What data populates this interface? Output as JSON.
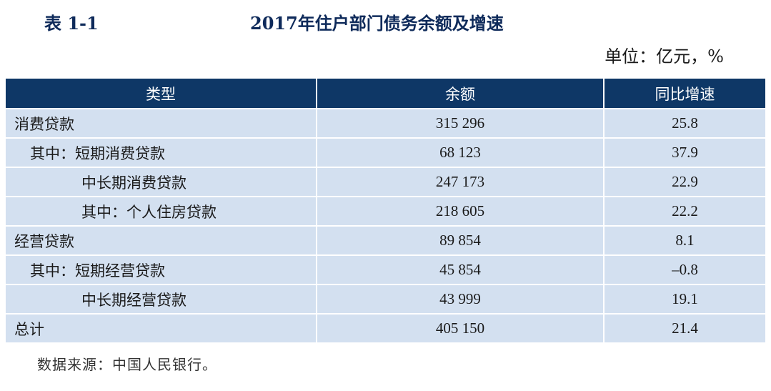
{
  "header": {
    "table_number": "表 1-1",
    "title": "2017年住户部门债务余额及增速",
    "unit": "单位：亿元，%"
  },
  "table": {
    "columns": [
      "类型",
      "余额",
      "同比增速"
    ],
    "rows": [
      {
        "type": "消费贷款",
        "balance": "315 296",
        "growth": "25.8",
        "indent": 0
      },
      {
        "type": "其中：短期消费贷款",
        "balance": "68 123",
        "growth": "37.9",
        "indent": 1
      },
      {
        "type": "中长期消费贷款",
        "balance": "247 173",
        "growth": "22.9",
        "indent": 2
      },
      {
        "type": "其中：个人住房贷款",
        "balance": "218 605",
        "growth": "22.2",
        "indent": 2
      },
      {
        "type": "经营贷款",
        "balance": "89 854",
        "growth": "8.1",
        "indent": 0
      },
      {
        "type": "其中：短期经营贷款",
        "balance": "45 854",
        "growth": "–0.8",
        "indent": 1
      },
      {
        "type": "中长期经营贷款",
        "balance": "43 999",
        "growth": "19.1",
        "indent": 2
      },
      {
        "type": "总计",
        "balance": "405 150",
        "growth": "21.4",
        "indent": 0
      }
    ]
  },
  "footer": {
    "source": "数据来源：中国人民银行。"
  },
  "colors": {
    "header_bg": "#0e3766",
    "row_bg": "#d3e0f0",
    "title_color": "#0e2a5a"
  }
}
